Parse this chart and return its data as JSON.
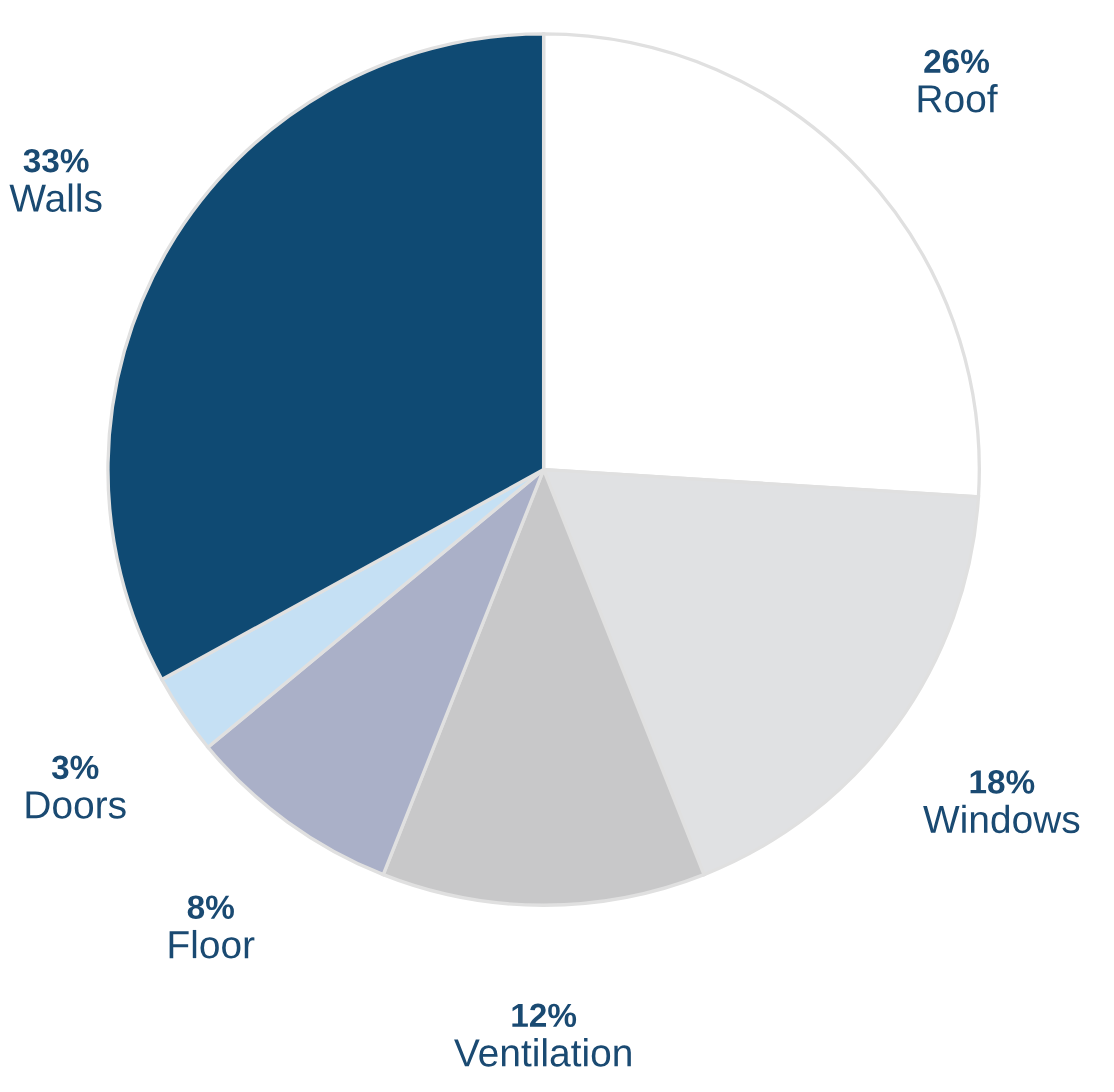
{
  "chart_data": {
    "type": "pie",
    "categories": [
      "Roof",
      "Windows",
      "Ventilation",
      "Floor",
      "Doors",
      "Walls"
    ],
    "values": [
      26,
      18,
      12,
      8,
      3,
      33
    ],
    "value_labels": [
      "26%",
      "18%",
      "12%",
      "8%",
      "3%",
      "33%"
    ],
    "colors": [
      "#ffffff",
      "#e0e1e3",
      "#c8c8c9",
      "#aab0c8",
      "#c5e0f4",
      "#0f4a73"
    ],
    "legend": false
  }
}
